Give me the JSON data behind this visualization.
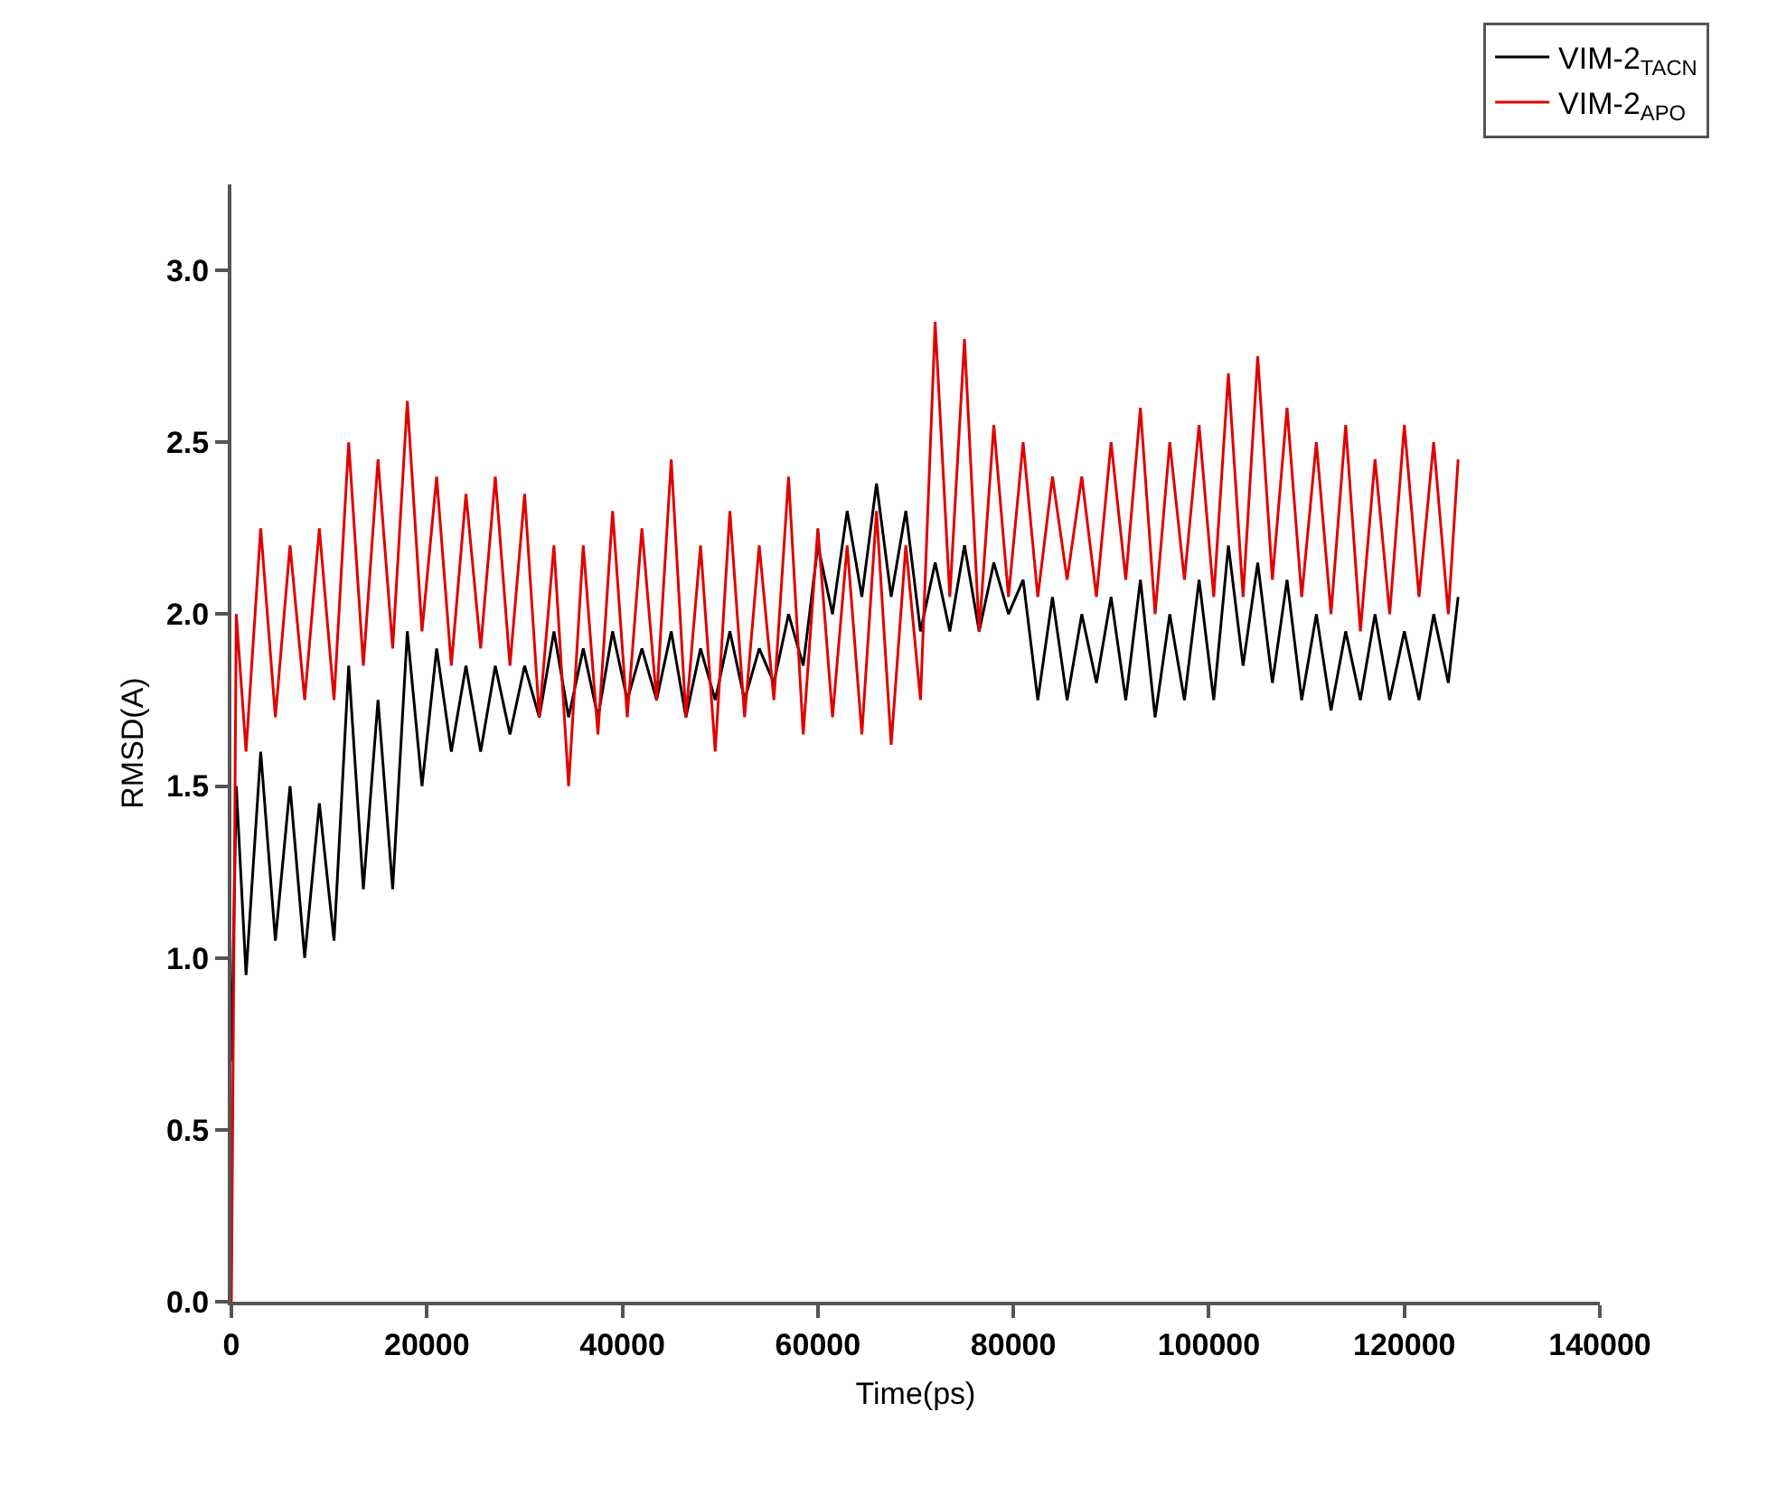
{
  "chart_data": {
    "type": "line",
    "xlabel": "Time(ps)",
    "ylabel": "RMSD(A)",
    "x": [
      0,
      500,
      1500,
      3000,
      4500,
      6000,
      7500,
      9000,
      10500,
      12000,
      13500,
      15000,
      16500,
      18000,
      19500,
      21000,
      22500,
      24000,
      25500,
      27000,
      28500,
      30000,
      31500,
      33000,
      34500,
      36000,
      37500,
      39000,
      40500,
      42000,
      43500,
      45000,
      46500,
      48000,
      49500,
      51000,
      52500,
      54000,
      55500,
      57000,
      58500,
      60000,
      61500,
      63000,
      64500,
      66000,
      67500,
      69000,
      70500,
      72000,
      73500,
      75000,
      76500,
      78000,
      79500,
      81000,
      82500,
      84000,
      85500,
      87000,
      88500,
      90000,
      91500,
      93000,
      94500,
      96000,
      97500,
      99000,
      100500,
      102000,
      103500,
      105000,
      106500,
      108000,
      109500,
      111000,
      112500,
      114000,
      115500,
      117000,
      118500,
      120000,
      121500,
      123000,
      124500,
      125500
    ],
    "series": [
      {
        "name": "VIM-2$_{TACN}$",
        "color": "#000000",
        "values": [
          0.7,
          1.5,
          0.95,
          1.6,
          1.05,
          1.5,
          1.0,
          1.45,
          1.05,
          1.85,
          1.2,
          1.75,
          1.2,
          1.95,
          1.5,
          1.9,
          1.6,
          1.85,
          1.6,
          1.85,
          1.65,
          1.85,
          1.7,
          1.95,
          1.7,
          1.9,
          1.7,
          1.95,
          1.75,
          1.9,
          1.75,
          1.95,
          1.7,
          1.9,
          1.75,
          1.95,
          1.75,
          1.9,
          1.8,
          2.0,
          1.85,
          2.2,
          2.0,
          2.3,
          2.05,
          2.38,
          2.05,
          2.3,
          1.95,
          2.15,
          1.95,
          2.2,
          1.95,
          2.15,
          2.0,
          2.1,
          1.75,
          2.05,
          1.75,
          2.0,
          1.8,
          2.05,
          1.75,
          2.1,
          1.7,
          2.0,
          1.75,
          2.1,
          1.75,
          2.2,
          1.85,
          2.15,
          1.8,
          2.1,
          1.75,
          2.0,
          1.72,
          1.95,
          1.75,
          2.0,
          1.75,
          1.95,
          1.75,
          2.0,
          1.8,
          2.05
        ]
      },
      {
        "name": "VIM-2$_{APO}$",
        "color": "#e00000",
        "values": [
          0.0,
          2.0,
          1.6,
          2.25,
          1.7,
          2.2,
          1.75,
          2.25,
          1.75,
          2.5,
          1.85,
          2.45,
          1.9,
          2.62,
          1.95,
          2.4,
          1.85,
          2.35,
          1.9,
          2.4,
          1.85,
          2.35,
          1.7,
          2.2,
          1.5,
          2.2,
          1.65,
          2.3,
          1.7,
          2.25,
          1.75,
          2.45,
          1.7,
          2.2,
          1.6,
          2.3,
          1.7,
          2.2,
          1.75,
          2.4,
          1.65,
          2.25,
          1.7,
          2.2,
          1.65,
          2.3,
          1.62,
          2.2,
          1.75,
          2.85,
          2.05,
          2.8,
          1.95,
          2.55,
          2.05,
          2.5,
          2.05,
          2.4,
          2.1,
          2.4,
          2.05,
          2.5,
          2.1,
          2.6,
          2.0,
          2.5,
          2.1,
          2.55,
          2.05,
          2.7,
          2.05,
          2.75,
          2.1,
          2.6,
          2.05,
          2.5,
          2.0,
          2.55,
          1.95,
          2.45,
          2.0,
          2.55,
          2.05,
          2.5,
          2.0,
          2.45
        ]
      }
    ],
    "xlim": [
      0,
      140000
    ],
    "xticks": [
      0,
      20000,
      40000,
      60000,
      80000,
      100000,
      120000,
      140000
    ],
    "ylim": [
      0,
      3.25
    ],
    "yticks": [
      {
        "value": 0,
        "label": "0.0"
      },
      {
        "value": 0.5,
        "label": "0.5"
      },
      {
        "value": 1,
        "label": "1.0"
      },
      {
        "value": 1.5,
        "label": "1.5"
      },
      {
        "value": 2,
        "label": "2.0"
      },
      {
        "value": 2.5,
        "label": "2.5"
      },
      {
        "value": 3,
        "label": "3.0"
      }
    ],
    "legend": "top right",
    "marker": "none",
    "line_style": "solid"
  }
}
